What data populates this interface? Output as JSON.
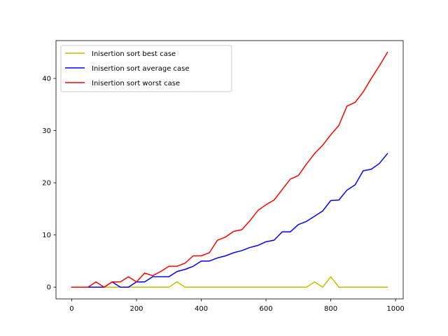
{
  "chart_data": {
    "type": "line",
    "title": "",
    "xlabel": "",
    "ylabel": "",
    "xlim": [
      -48.6,
      1023.6
    ],
    "ylim": [
      -2.25,
      47.25
    ],
    "xticks": [
      0,
      200,
      400,
      600,
      800,
      1000
    ],
    "yticks": [
      0,
      10,
      20,
      30,
      40
    ],
    "grid": false,
    "legend_position": "upper-left",
    "x": [
      0,
      25,
      50,
      75,
      100,
      125,
      150,
      175,
      200,
      225,
      250,
      275,
      300,
      325,
      350,
      375,
      400,
      425,
      450,
      475,
      500,
      525,
      550,
      575,
      600,
      625,
      650,
      675,
      700,
      725,
      750,
      775,
      800,
      825,
      850,
      875,
      900,
      925,
      950,
      975
    ],
    "series": [
      {
        "name": "Inisertion sort best case",
        "color": "#bfbf00",
        "values": [
          0,
          0,
          0,
          0,
          0,
          0,
          0,
          0,
          0,
          0,
          0,
          0,
          0,
          1,
          0,
          0,
          0,
          0,
          0,
          0,
          0,
          0,
          0,
          0,
          0,
          0,
          0,
          0,
          0,
          0,
          1,
          0,
          2,
          0,
          0,
          0,
          0,
          0,
          0,
          0
        ]
      },
      {
        "name": "Inisertion sort average case",
        "color": "#0000ff",
        "values": [
          0,
          0,
          0,
          0,
          0,
          1,
          0,
          0,
          1,
          1,
          2,
          2,
          2,
          3,
          3.4,
          4,
          5,
          5,
          5.6,
          6,
          6.6,
          7,
          7.6,
          8,
          8.7,
          9,
          10.6,
          10.6,
          12,
          12.6,
          13.6,
          14.6,
          16.6,
          16.7,
          18.6,
          19.6,
          22.3,
          22.6,
          23.7,
          25.6
        ]
      },
      {
        "name": "Inisertion sort worst case",
        "color": "#ff0000",
        "values": [
          0,
          0,
          0,
          1,
          0,
          1,
          1,
          2,
          1,
          2.7,
          2.2,
          3,
          4,
          4,
          4.6,
          6,
          6,
          6.6,
          9,
          9.6,
          10.7,
          11,
          12.7,
          14.7,
          15.8,
          16.7,
          18.7,
          20.7,
          21.4,
          23.6,
          25.6,
          27.2,
          29.2,
          31,
          34.7,
          35.4,
          37.4,
          40,
          42.4,
          45
        ]
      }
    ]
  }
}
